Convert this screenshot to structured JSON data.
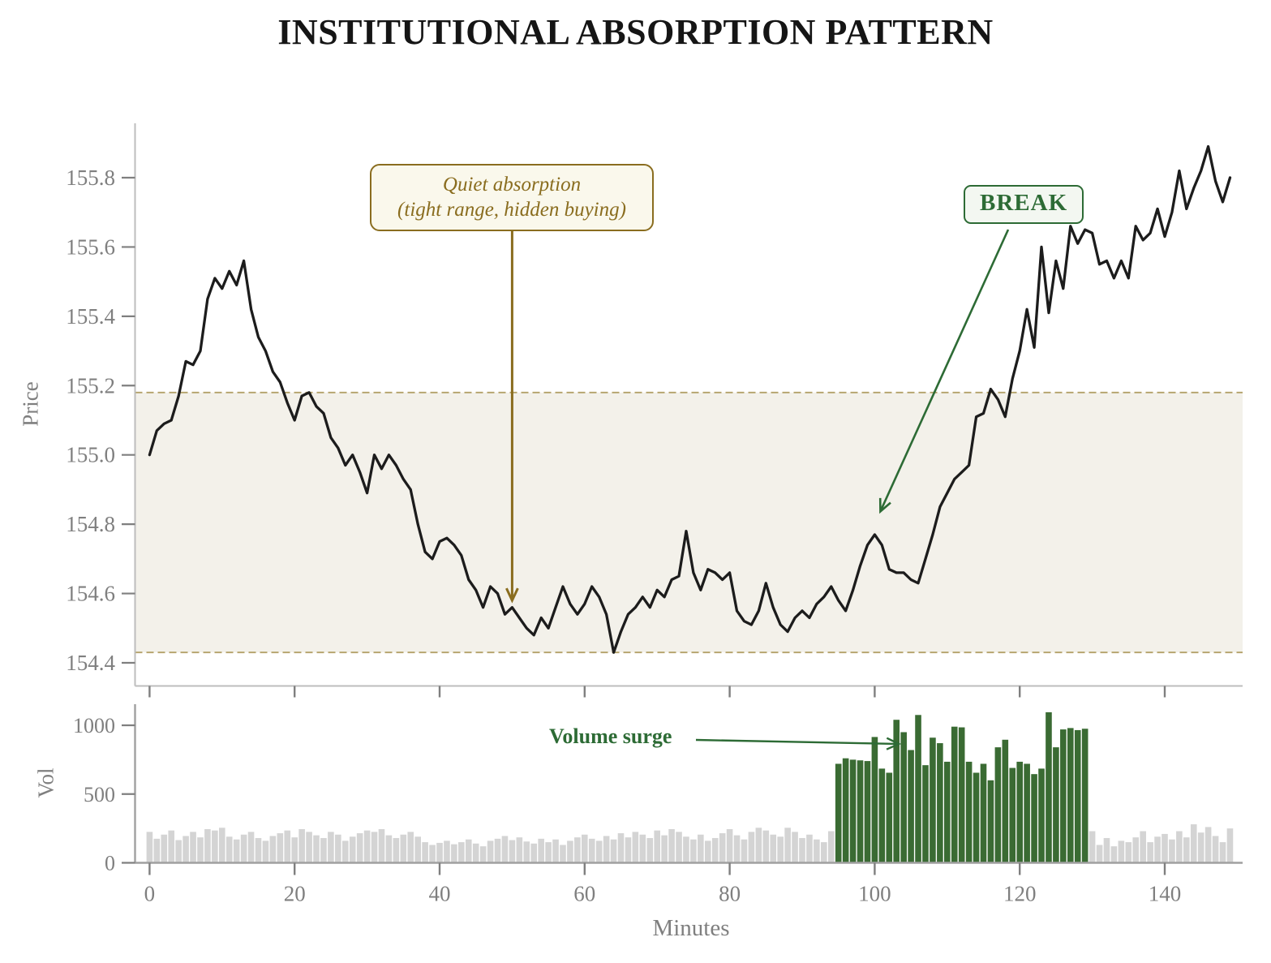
{
  "title": "INSTITUTIONAL ABSORPTION PATTERN",
  "axes": {
    "price_label": "Price",
    "vol_label": "Vol",
    "x_label": "Minutes",
    "price_ticks": [
      "155.8",
      "155.6",
      "155.4",
      "155.2",
      "155.0",
      "154.8",
      "154.6",
      "154.4"
    ],
    "price_tick_values": [
      155.8,
      155.6,
      155.4,
      155.2,
      155.0,
      154.8,
      154.6,
      154.4
    ],
    "vol_ticks": [
      "1000",
      "500",
      "0"
    ],
    "vol_tick_values": [
      1000,
      500,
      0
    ],
    "x_ticks": [
      "0",
      "20",
      "40",
      "60",
      "80",
      "100",
      "120",
      "140"
    ],
    "x_tick_values": [
      0,
      20,
      40,
      60,
      80,
      100,
      120,
      140
    ]
  },
  "band": {
    "upper": 155.18,
    "lower": 154.43
  },
  "annotations": {
    "quiet": {
      "line1": "Quiet absorption",
      "line2": "(tight range, hidden buying)",
      "target_minute": 50,
      "target_price": 154.58
    },
    "break": {
      "label": "BREAK",
      "target_minute": 100,
      "target_price": 154.79
    },
    "surge": {
      "label": "Volume surge",
      "target_minute": 103
    }
  },
  "colors": {
    "price_line": "#1c1c1c",
    "band_fill": "#f3f1ea",
    "band_edge": "#b3a169",
    "volume_normal": "#d4d4d4",
    "volume_surge": "#3a6b33",
    "annotation_olive": "#8a6d1f",
    "annotation_green": "#2d6b35",
    "tick_gray": "#7f7f7f",
    "spine_gray": "#bdbdbd",
    "vol_spine_gray": "#a0a0a0"
  },
  "chart_data": [
    {
      "type": "line",
      "name": "price",
      "title": "INSTITUTIONAL ABSORPTION PATTERN",
      "xlabel": "Minutes",
      "ylabel": "Price",
      "x_start": 0,
      "x_step": 1,
      "ylim": [
        154.35,
        155.95
      ],
      "xlim": [
        -2,
        152
      ],
      "grid": false,
      "band_upper": 155.18,
      "band_lower": 154.43,
      "values": [
        155.0,
        155.07,
        155.09,
        155.1,
        155.17,
        155.27,
        155.26,
        155.3,
        155.45,
        155.51,
        155.48,
        155.53,
        155.49,
        155.56,
        155.42,
        155.34,
        155.3,
        155.24,
        155.21,
        155.15,
        155.1,
        155.17,
        155.18,
        155.14,
        155.12,
        155.05,
        155.02,
        154.97,
        155.0,
        154.95,
        154.89,
        155.0,
        154.96,
        155.0,
        154.97,
        154.93,
        154.9,
        154.8,
        154.72,
        154.7,
        154.75,
        154.76,
        154.74,
        154.71,
        154.64,
        154.61,
        154.56,
        154.62,
        154.6,
        154.54,
        154.56,
        154.53,
        154.5,
        154.48,
        154.53,
        154.5,
        154.56,
        154.62,
        154.57,
        154.54,
        154.57,
        154.62,
        154.59,
        154.54,
        154.43,
        154.49,
        154.54,
        154.56,
        154.59,
        154.56,
        154.61,
        154.59,
        154.64,
        154.65,
        154.78,
        154.66,
        154.61,
        154.67,
        154.66,
        154.64,
        154.66,
        154.55,
        154.52,
        154.51,
        154.55,
        154.63,
        154.56,
        154.51,
        154.49,
        154.53,
        154.55,
        154.53,
        154.57,
        154.59,
        154.62,
        154.58,
        154.55,
        154.61,
        154.68,
        154.74,
        154.77,
        154.74,
        154.67,
        154.66,
        154.66,
        154.64,
        154.63,
        154.7,
        154.77,
        154.85,
        154.89,
        154.93,
        154.95,
        154.97,
        155.11,
        155.12,
        155.19,
        155.16,
        155.11,
        155.22,
        155.3,
        155.42,
        155.31,
        155.6,
        155.41,
        155.56,
        155.48,
        155.66,
        155.61,
        155.65,
        155.64,
        155.55,
        155.56,
        155.51,
        155.56,
        155.51,
        155.66,
        155.62,
        155.64,
        155.71,
        155.63,
        155.7,
        155.82,
        155.71,
        155.77,
        155.82,
        155.89,
        155.79,
        155.73,
        155.8
      ]
    },
    {
      "type": "bar",
      "name": "volume",
      "xlabel": "Minutes",
      "ylabel": "Vol",
      "x_start": 0,
      "x_step": 1,
      "ylim": [
        0,
        1150
      ],
      "surge_range": [
        95,
        129
      ],
      "values": [
        225,
        175,
        205,
        235,
        165,
        195,
        225,
        185,
        245,
        235,
        255,
        190,
        170,
        205,
        225,
        180,
        160,
        195,
        215,
        235,
        185,
        245,
        225,
        200,
        180,
        225,
        205,
        160,
        190,
        215,
        235,
        225,
        245,
        200,
        180,
        205,
        225,
        190,
        150,
        130,
        145,
        160,
        135,
        150,
        170,
        140,
        120,
        160,
        175,
        195,
        165,
        185,
        155,
        140,
        175,
        150,
        170,
        130,
        160,
        185,
        205,
        175,
        160,
        195,
        170,
        215,
        185,
        225,
        205,
        180,
        235,
        200,
        245,
        225,
        190,
        170,
        205,
        160,
        180,
        215,
        245,
        200,
        170,
        225,
        255,
        235,
        205,
        190,
        255,
        225,
        180,
        205,
        170,
        150,
        230,
        720,
        760,
        750,
        745,
        740,
        915,
        685,
        655,
        1040,
        950,
        820,
        1075,
        710,
        910,
        870,
        735,
        990,
        985,
        735,
        655,
        720,
        600,
        840,
        895,
        690,
        735,
        720,
        645,
        685,
        1095,
        840,
        970,
        980,
        965,
        975,
        230,
        130,
        180,
        120,
        160,
        150,
        185,
        230,
        150,
        190,
        210,
        170,
        230,
        185,
        280,
        220,
        260,
        195,
        150,
        250
      ]
    }
  ]
}
